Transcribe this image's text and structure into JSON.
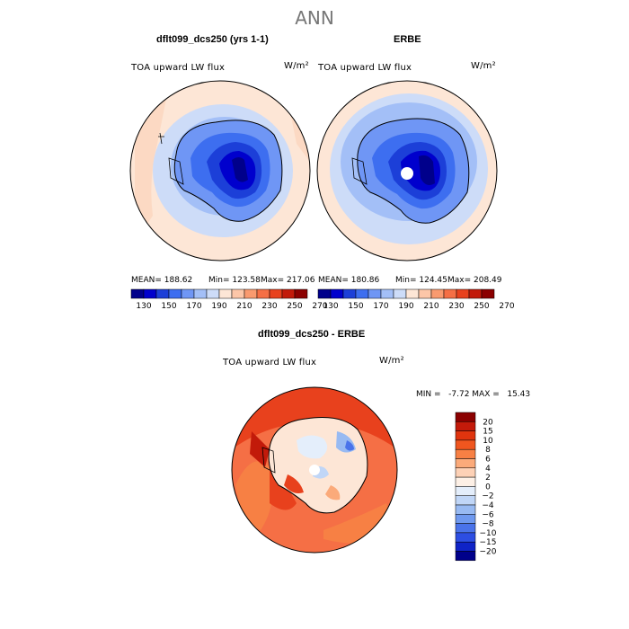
{
  "page": {
    "title": "ANN"
  },
  "chart_data": [
    {
      "type": "heatmap",
      "title": "dflt099_dcs250 (yrs 1-1)",
      "field": "TOA upward LW flux",
      "units": "W/m²",
      "projection": "south polar stereographic",
      "stats": {
        "mean_label": "MEAN= 188.62",
        "min_label": "Min= 123.58",
        "max_label": "Max= 217.06",
        "mean": 188.62,
        "min": 123.58,
        "max": 217.06
      }
    },
    {
      "type": "heatmap",
      "title": "ERBE",
      "field": "TOA upward LW flux",
      "units": "W/m²",
      "projection": "south polar stereographic",
      "stats": {
        "mean_label": "MEAN= 180.86",
        "min_label": "Min= 124.45",
        "max_label": "Max= 208.49",
        "mean": 180.86,
        "min": 124.45,
        "max": 208.49
      }
    },
    {
      "type": "heatmap",
      "title": "dflt099_dcs250 - ERBE",
      "field": "TOA upward LW flux",
      "units": "W/m²",
      "projection": "south polar stereographic",
      "stats": {
        "minmax_label": "MIN =   -7.72 MAX =   15.43",
        "min": -7.72,
        "max": 15.43
      }
    }
  ],
  "colorbar_top": {
    "colors": [
      "#00008b",
      "#0000cd",
      "#1c3fd8",
      "#3d6ef0",
      "#6f96f5",
      "#a3bff7",
      "#cddcf8",
      "#fde6d6",
      "#fcc6a8",
      "#f99a6f",
      "#f56f45",
      "#e8411d",
      "#c21a0a",
      "#8b0000"
    ],
    "tick_labels": [
      "130",
      "150",
      "170",
      "190",
      "210",
      "230",
      "250",
      "270"
    ]
  },
  "colorbar_diff": {
    "colors_top_to_bottom": [
      "#8b0000",
      "#c41a0a",
      "#e0340e",
      "#f0561f",
      "#f78044",
      "#fbaa7a",
      "#fdd1b6",
      "#fdf0e6",
      "#e4eefb",
      "#c0d6f7",
      "#98baf2",
      "#6f99ef",
      "#4a73ea",
      "#2d4ee3",
      "#0f23c7",
      "#00008b"
    ],
    "tick_labels": [
      "20",
      "15",
      "10",
      "8",
      "6",
      "4",
      "2",
      "0",
      "−2",
      "−4",
      "−6",
      "−8",
      "−10",
      "−15",
      "−20"
    ]
  }
}
